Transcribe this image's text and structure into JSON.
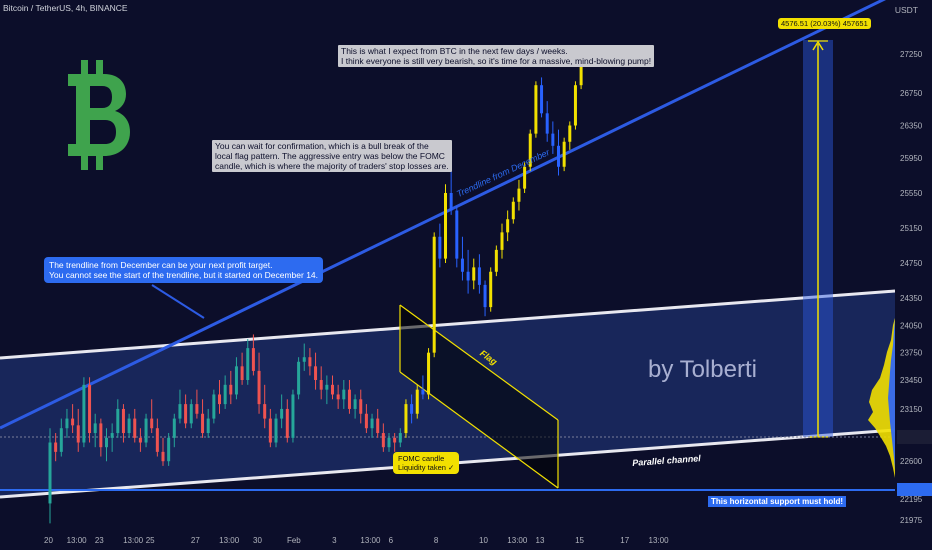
{
  "header": {
    "symbol_line": "Bitcoin / TetherUS, 4h, BINANCE",
    "price_unit": "USDT"
  },
  "watermark": "by Tolberti",
  "annotations": {
    "top_note": [
      "This is what I expect from BTC in the next few days / weeks.",
      "I think everyone is still very bearish, so it's time for a massive, mind-blowing pump!"
    ],
    "mid_note": [
      "You can wait for confirmation, which is a bull break of the",
      "local flag pattern. The aggressive entry was below the FOMC",
      "candle, which is where the majority of traders' stop losses are."
    ],
    "blue_note": [
      "The trendline from December can be your next profit target.",
      "You cannot see the start of the trendline, but it started on December 14."
    ],
    "fomc_note": [
      "FOMC candle",
      "Liquidity taken ✓"
    ],
    "target_label": "4576.51 (20.03%) 457651",
    "trendline_label": "Trendline from December",
    "flag_label": "Flag",
    "channel_label": "Parallel channel",
    "support_label": "This horizontal support must hold!"
  },
  "colors": {
    "background": "#0c0e2a",
    "bull_candle": "#26a69a",
    "bear_candle": "#ef5350",
    "projection_up": "#f2e000",
    "projection_down": "#2962ff",
    "trendline": "#2d5be3",
    "channel_fill": "#1c2f6b",
    "flag": "#f2e000",
    "support": "#2d6bf0",
    "logo": "#3fa34d"
  },
  "chart_data": {
    "type": "candlestick",
    "title": "Bitcoin / TetherUS, 4h, BINANCE",
    "y_unit": "USDT",
    "ylim": [
      21900,
      27780
    ],
    "y_ticks": [
      21975,
      22195,
      22292,
      22600,
      22859.02,
      23150,
      23450,
      23750,
      24050,
      24350,
      24750,
      25150,
      25550,
      25950,
      26350,
      26750,
      27250
    ],
    "x_ticks": [
      {
        "label": "20",
        "index": 0
      },
      {
        "label": "13:00",
        "index": 4
      },
      {
        "label": "23",
        "index": 9
      },
      {
        "label": "13:00",
        "index": 14
      },
      {
        "label": "25",
        "index": 18
      },
      {
        "label": "27",
        "index": 26
      },
      {
        "label": "13:00",
        "index": 31
      },
      {
        "label": "30",
        "index": 37
      },
      {
        "label": "Feb",
        "index": 43
      },
      {
        "label": "3",
        "index": 51
      },
      {
        "label": "13:00",
        "index": 56
      },
      {
        "label": "6",
        "index": 61
      },
      {
        "label": "8",
        "index": 69
      },
      {
        "label": "10",
        "index": 77
      },
      {
        "label": "13:00",
        "index": 82
      },
      {
        "label": "13",
        "index": 87
      },
      {
        "label": "15",
        "index": 94
      },
      {
        "label": "17",
        "index": 102
      },
      {
        "label": "13:00",
        "index": 107
      }
    ],
    "candles_ohlc": [
      [
        22150,
        22950,
        21940,
        22800
      ],
      [
        22800,
        22900,
        22600,
        22700
      ],
      [
        22700,
        23050,
        22650,
        22950
      ],
      [
        22950,
        23150,
        22850,
        23050
      ],
      [
        23050,
        23200,
        22900,
        22980
      ],
      [
        22980,
        23150,
        22700,
        22800
      ],
      [
        22800,
        23480,
        22750,
        23400
      ],
      [
        23400,
        23480,
        22800,
        22900
      ],
      [
        22900,
        23100,
        22750,
        23000
      ],
      [
        23000,
        23050,
        22650,
        22750
      ],
      [
        22750,
        22950,
        22600,
        22850
      ],
      [
        22850,
        23000,
        22700,
        22900
      ],
      [
        22900,
        23250,
        22850,
        23150
      ],
      [
        23150,
        23200,
        22800,
        22900
      ],
      [
        22900,
        23100,
        22850,
        23050
      ],
      [
        23050,
        23150,
        22800,
        22850
      ],
      [
        22850,
        22950,
        22700,
        22800
      ],
      [
        22800,
        23100,
        22750,
        23050
      ],
      [
        23050,
        23250,
        22900,
        22950
      ],
      [
        22950,
        23050,
        22650,
        22700
      ],
      [
        22700,
        22850,
        22550,
        22600
      ],
      [
        22600,
        22900,
        22550,
        22850
      ],
      [
        22850,
        23100,
        22750,
        23050
      ],
      [
        23050,
        23350,
        23000,
        23200
      ],
      [
        23200,
        23300,
        22950,
        23000
      ],
      [
        23000,
        23250,
        22950,
        23200
      ],
      [
        23200,
        23350,
        23050,
        23100
      ],
      [
        23100,
        23250,
        22850,
        22900
      ],
      [
        22900,
        23150,
        22850,
        23050
      ],
      [
        23050,
        23350,
        23000,
        23300
      ],
      [
        23300,
        23450,
        23100,
        23200
      ],
      [
        23200,
        23500,
        23150,
        23400
      ],
      [
        23400,
        23550,
        23200,
        23300
      ],
      [
        23300,
        23700,
        23250,
        23600
      ],
      [
        23600,
        23750,
        23400,
        23450
      ],
      [
        23450,
        23900,
        23400,
        23800
      ],
      [
        23800,
        23950,
        23500,
        23550
      ],
      [
        23550,
        23750,
        23100,
        23200
      ],
      [
        23200,
        23400,
        22950,
        23050
      ],
      [
        23050,
        23150,
        22750,
        22800
      ],
      [
        22800,
        23100,
        22750,
        23050
      ],
      [
        23050,
        23300,
        22950,
        23150
      ],
      [
        23150,
        23250,
        22800,
        22850
      ],
      [
        22850,
        23350,
        22800,
        23300
      ],
      [
        23300,
        23700,
        23250,
        23650
      ],
      [
        23650,
        23850,
        23550,
        23700
      ],
      [
        23700,
        23800,
        23500,
        23600
      ],
      [
        23600,
        23750,
        23350,
        23450
      ],
      [
        23450,
        23600,
        23250,
        23350
      ],
      [
        23350,
        23500,
        23200,
        23400
      ],
      [
        23400,
        23500,
        23250,
        23300
      ],
      [
        23300,
        23400,
        23150,
        23250
      ],
      [
        23250,
        23450,
        23150,
        23350
      ],
      [
        23350,
        23450,
        23100,
        23150
      ],
      [
        23150,
        23300,
        23050,
        23250
      ],
      [
        23250,
        23350,
        23000,
        23100
      ],
      [
        23100,
        23200,
        22900,
        22950
      ],
      [
        22950,
        23100,
        22850,
        23050
      ],
      [
        23050,
        23150,
        22850,
        22900
      ],
      [
        22900,
        23000,
        22700,
        22750
      ],
      [
        22750,
        22900,
        22700,
        22850
      ],
      [
        22850,
        22900,
        22700,
        22800
      ],
      [
        22800,
        22950,
        22750,
        22900
      ]
    ],
    "projection_ohlc": [
      [
        22900,
        23250,
        22850,
        23200
      ],
      [
        23200,
        23300,
        23000,
        23100
      ],
      [
        23100,
        23400,
        23050,
        23350
      ],
      [
        23350,
        23500,
        23250,
        23300
      ],
      [
        23300,
        23800,
        23250,
        23750
      ],
      [
        23750,
        25100,
        23700,
        25050
      ],
      [
        25050,
        25200,
        24700,
        24800
      ],
      [
        24800,
        25650,
        24750,
        25550
      ],
      [
        25550,
        25900,
        25300,
        25350
      ],
      [
        25350,
        25400,
        24700,
        24800
      ],
      [
        24800,
        25050,
        24550,
        24650
      ],
      [
        24650,
        24900,
        24400,
        24550
      ],
      [
        24550,
        24800,
        24450,
        24700
      ],
      [
        24700,
        24850,
        24400,
        24500
      ],
      [
        24500,
        24550,
        24150,
        24250
      ],
      [
        24250,
        24700,
        24200,
        24650
      ],
      [
        24650,
        24950,
        24600,
        24900
      ],
      [
        24900,
        25200,
        24800,
        25100
      ],
      [
        25100,
        25350,
        25000,
        25250
      ],
      [
        25250,
        25500,
        25200,
        25450
      ],
      [
        25450,
        25700,
        25350,
        25600
      ],
      [
        25600,
        25900,
        25550,
        25850
      ],
      [
        25850,
        26300,
        25800,
        26250
      ],
      [
        26250,
        26900,
        26200,
        26850
      ],
      [
        26850,
        26950,
        26450,
        26500
      ],
      [
        26500,
        26650,
        26150,
        26250
      ],
      [
        26250,
        26400,
        26000,
        26100
      ],
      [
        26100,
        26300,
        25750,
        25850
      ],
      [
        25850,
        26200,
        25800,
        26150
      ],
      [
        26150,
        26400,
        26050,
        26350
      ],
      [
        26350,
        26900,
        26300,
        26850
      ],
      [
        26850,
        27350,
        26800,
        27300
      ]
    ],
    "levels": {
      "current_price": 22859.02,
      "support": 22292,
      "target_high": 27300
    }
  }
}
